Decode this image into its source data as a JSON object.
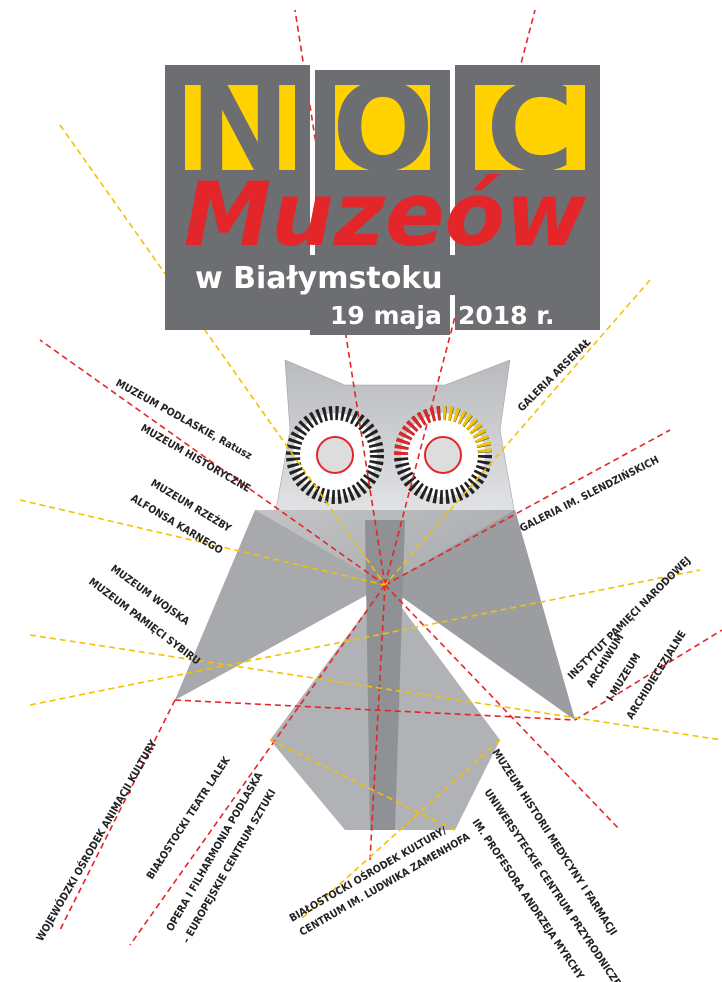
{
  "header": {
    "letters": [
      "N",
      "O",
      "C"
    ],
    "title": "Muzeów",
    "city": "w Białymstoku",
    "date": "19 maja",
    "year": "2018 r."
  },
  "venues": [
    {
      "lines": [
        "MUZEUM PODLASKIE, Ratusz",
        "MUZEUM HISTORYCZNE"
      ]
    },
    {
      "lines": [
        "MUZEUM RZEŹBY",
        "ALFONSA KARNEGO"
      ]
    },
    {
      "lines": [
        "MUZEUM WOJSKA",
        "MUZEUM PAMIĘCI SYBIRU"
      ]
    },
    {
      "lines": [
        "WOJEWÓDZKI OŚRODEK ANIMACJI KULTURY"
      ]
    },
    {
      "lines": [
        "BIAŁOSTOCKI TEATR LALEK"
      ]
    },
    {
      "lines": [
        "OPERA I FILHARMONIA PODLASKA",
        "– EUROPEJSKIE CENTRUM SZTUKI"
      ]
    },
    {
      "lines": [
        "BIAŁOSTOCKI OŚRODEK KULTURY/",
        "CENTRUM IM. LUDWIKA ZAMENHOFA"
      ]
    },
    {
      "lines": [
        "MUZEUM HISTORII MEDYCYNY I FARMACJI"
      ]
    },
    {
      "lines": [
        "UNIWERSYTECKIE CENTRUM PRZYRODNICZE",
        "IM. PROFESORA ANDRZEJA MYRCHY"
      ]
    },
    {
      "lines": [
        "INSTYTUT PAMIĘCI NARODOWEJ"
      ]
    },
    {
      "lines": [
        "ARCHIWUM",
        "I MUZEUM",
        "ARCHIDIECEZJALNE"
      ]
    },
    {
      "lines": [
        "GALERIA IM. SLENDZIŃSKICH"
      ]
    },
    {
      "lines": [
        "GALERIA ARSENAŁ"
      ]
    }
  ]
}
